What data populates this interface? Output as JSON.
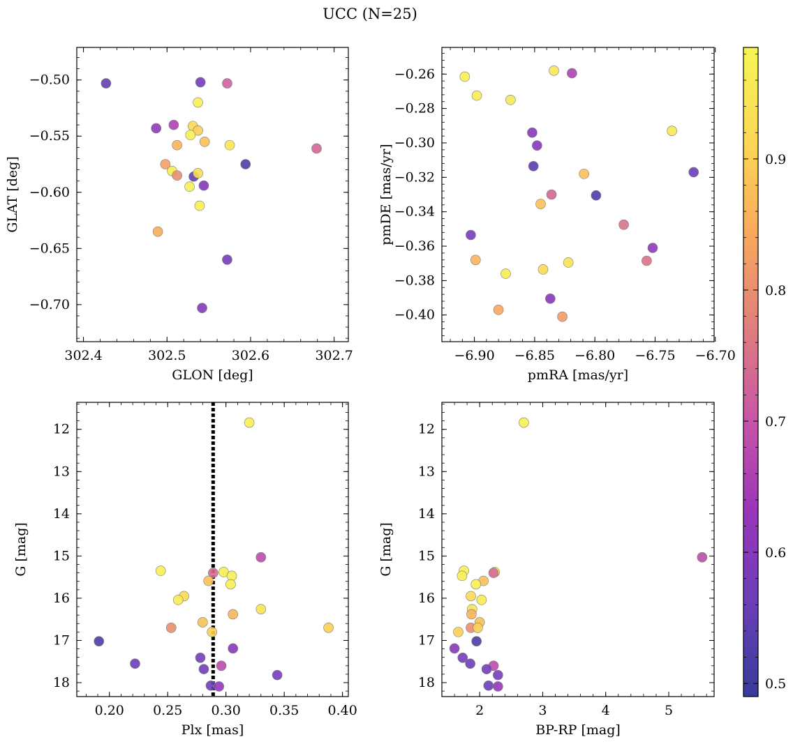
{
  "title": "UCC (N=25)",
  "colormap": {
    "name": "plasma",
    "stops": [
      "#363c9a",
      "#6a3fb8",
      "#9a35ba",
      "#c856a6",
      "#e07f7e",
      "#f8a95c",
      "#fcd855",
      "#f6f555"
    ],
    "min": 0.49,
    "max": 0.985,
    "ticks": [
      0.5,
      0.6,
      0.7,
      0.8,
      0.9
    ],
    "tick_labels": [
      "0.5",
      "0.6",
      "0.7",
      "0.8",
      "0.9"
    ]
  },
  "chart_data": [
    {
      "type": "scatter",
      "id": "pos",
      "xlabel": "GLON [deg]",
      "ylabel": "GLAT [deg]",
      "xlim": [
        302.392,
        302.717
      ],
      "ylim": [
        -0.733,
        -0.471
      ],
      "y_inverted": false,
      "xticks": [
        302.4,
        302.5,
        302.6,
        302.7
      ],
      "xtick_labels": [
        "302.4",
        "302.5",
        "302.6",
        "302.7"
      ],
      "yticks": [
        -0.5,
        -0.55,
        -0.6,
        -0.65,
        -0.7
      ],
      "ytick_labels": [
        "−0.50",
        "−0.55",
        "−0.60",
        "−0.65",
        "−0.70"
      ],
      "points": [
        {
          "x": 302.427,
          "y": -0.503,
          "c": 0.55
        },
        {
          "x": 302.54,
          "y": -0.502,
          "c": 0.57
        },
        {
          "x": 302.572,
          "y": -0.503,
          "c": 0.72
        },
        {
          "x": 302.537,
          "y": -0.52,
          "c": 0.97
        },
        {
          "x": 302.487,
          "y": -0.543,
          "c": 0.62
        },
        {
          "x": 302.508,
          "y": -0.54,
          "c": 0.66
        },
        {
          "x": 302.531,
          "y": -0.541,
          "c": 0.92
        },
        {
          "x": 302.537,
          "y": -0.545,
          "c": 0.9
        },
        {
          "x": 302.528,
          "y": -0.549,
          "c": 0.97
        },
        {
          "x": 302.545,
          "y": -0.555,
          "c": 0.88
        },
        {
          "x": 302.575,
          "y": -0.558,
          "c": 0.95
        },
        {
          "x": 302.512,
          "y": -0.558,
          "c": 0.86
        },
        {
          "x": 302.679,
          "y": -0.561,
          "c": 0.73
        },
        {
          "x": 302.594,
          "y": -0.575,
          "c": 0.52
        },
        {
          "x": 302.498,
          "y": -0.575,
          "c": 0.83
        },
        {
          "x": 302.506,
          "y": -0.581,
          "c": 0.96
        },
        {
          "x": 302.512,
          "y": -0.585,
          "c": 0.8
        },
        {
          "x": 302.532,
          "y": -0.586,
          "c": 0.55
        },
        {
          "x": 302.537,
          "y": -0.583,
          "c": 0.93
        },
        {
          "x": 302.527,
          "y": -0.595,
          "c": 0.97
        },
        {
          "x": 302.544,
          "y": -0.594,
          "c": 0.6
        },
        {
          "x": 302.539,
          "y": -0.612,
          "c": 0.97
        },
        {
          "x": 302.489,
          "y": -0.635,
          "c": 0.85
        },
        {
          "x": 302.572,
          "y": -0.66,
          "c": 0.58
        },
        {
          "x": 302.542,
          "y": -0.703,
          "c": 0.6
        }
      ]
    },
    {
      "type": "scatter",
      "id": "pm",
      "xlabel": "pmRA [mas/yr]",
      "ylabel": "pmDE [mas/yr]",
      "xlim": [
        -6.927,
        -6.701
      ],
      "ylim": [
        -0.4155,
        -0.2445
      ],
      "y_inverted": false,
      "xticks": [
        -6.9,
        -6.85,
        -6.8,
        -6.75,
        -6.7
      ],
      "xtick_labels": [
        "−6.90",
        "−6.85",
        "−6.80",
        "−6.75",
        "−6.70"
      ],
      "yticks": [
        -0.26,
        -0.28,
        -0.3,
        -0.32,
        -0.34,
        -0.36,
        -0.38,
        -0.4
      ],
      "ytick_labels": [
        "−0.26",
        "−0.28",
        "−0.30",
        "−0.32",
        "−0.34",
        "−0.36",
        "−0.38",
        "−0.40"
      ],
      "points": [
        {
          "x": -6.908,
          "y": -0.2615,
          "c": 0.97
        },
        {
          "x": -6.834,
          "y": -0.258,
          "c": 0.95
        },
        {
          "x": -6.819,
          "y": -0.2595,
          "c": 0.66
        },
        {
          "x": -6.898,
          "y": -0.2725,
          "c": 0.96
        },
        {
          "x": -6.87,
          "y": -0.275,
          "c": 0.95
        },
        {
          "x": -6.736,
          "y": -0.293,
          "c": 0.95
        },
        {
          "x": -6.852,
          "y": -0.294,
          "c": 0.6
        },
        {
          "x": -6.848,
          "y": -0.3015,
          "c": 0.6
        },
        {
          "x": -6.851,
          "y": -0.3135,
          "c": 0.54
        },
        {
          "x": -6.718,
          "y": -0.317,
          "c": 0.56
        },
        {
          "x": -6.809,
          "y": -0.318,
          "c": 0.88
        },
        {
          "x": -6.799,
          "y": -0.3305,
          "c": 0.52
        },
        {
          "x": -6.836,
          "y": -0.33,
          "c": 0.73
        },
        {
          "x": -6.845,
          "y": -0.3355,
          "c": 0.88
        },
        {
          "x": -6.776,
          "y": -0.3475,
          "c": 0.75
        },
        {
          "x": -6.903,
          "y": -0.3535,
          "c": 0.58
        },
        {
          "x": -6.752,
          "y": -0.361,
          "c": 0.62
        },
        {
          "x": -6.899,
          "y": -0.368,
          "c": 0.86
        },
        {
          "x": -6.757,
          "y": -0.3685,
          "c": 0.75
        },
        {
          "x": -6.822,
          "y": -0.3695,
          "c": 0.94
        },
        {
          "x": -6.843,
          "y": -0.3735,
          "c": 0.92
        },
        {
          "x": -6.874,
          "y": -0.376,
          "c": 0.96
        },
        {
          "x": -6.837,
          "y": -0.3905,
          "c": 0.6
        },
        {
          "x": -6.88,
          "y": -0.397,
          "c": 0.84
        },
        {
          "x": -6.827,
          "y": -0.401,
          "c": 0.82
        }
      ]
    },
    {
      "type": "scatter",
      "id": "plx",
      "xlabel": "Plx [mas]",
      "ylabel": "G [mag]",
      "xlim": [
        0.172,
        0.405
      ],
      "ylim": [
        18.33,
        11.36
      ],
      "y_inverted": true,
      "xticks": [
        0.2,
        0.25,
        0.3,
        0.35,
        0.4
      ],
      "xtick_labels": [
        "0.20",
        "0.25",
        "0.30",
        "0.35",
        "0.40"
      ],
      "yticks": [
        12,
        13,
        14,
        15,
        16,
        17,
        18
      ],
      "ytick_labels": [
        "12",
        "13",
        "14",
        "15",
        "16",
        "17",
        "18"
      ],
      "vline": {
        "x": 0.289,
        "style": "dotted"
      },
      "points": [
        {
          "x": 0.32,
          "y": 11.84,
          "c": 0.97
        },
        {
          "x": 0.33,
          "y": 15.03,
          "c": 0.68
        },
        {
          "x": 0.244,
          "y": 15.35,
          "c": 0.97
        },
        {
          "x": 0.298,
          "y": 15.38,
          "c": 0.97
        },
        {
          "x": 0.289,
          "y": 15.4,
          "c": 0.74
        },
        {
          "x": 0.305,
          "y": 15.47,
          "c": 0.97
        },
        {
          "x": 0.285,
          "y": 15.59,
          "c": 0.88
        },
        {
          "x": 0.304,
          "y": 15.67,
          "c": 0.97
        },
        {
          "x": 0.264,
          "y": 15.95,
          "c": 0.92
        },
        {
          "x": 0.259,
          "y": 16.04,
          "c": 0.96
        },
        {
          "x": 0.33,
          "y": 16.26,
          "c": 0.94
        },
        {
          "x": 0.306,
          "y": 16.38,
          "c": 0.86
        },
        {
          "x": 0.28,
          "y": 16.57,
          "c": 0.88
        },
        {
          "x": 0.253,
          "y": 16.7,
          "c": 0.8
        },
        {
          "x": 0.388,
          "y": 16.7,
          "c": 0.9
        },
        {
          "x": 0.288,
          "y": 16.8,
          "c": 0.9
        },
        {
          "x": 0.191,
          "y": 17.02,
          "c": 0.52
        },
        {
          "x": 0.306,
          "y": 17.19,
          "c": 0.6
        },
        {
          "x": 0.278,
          "y": 17.41,
          "c": 0.58
        },
        {
          "x": 0.222,
          "y": 17.55,
          "c": 0.56
        },
        {
          "x": 0.296,
          "y": 17.6,
          "c": 0.68
        },
        {
          "x": 0.281,
          "y": 17.68,
          "c": 0.57
        },
        {
          "x": 0.344,
          "y": 17.82,
          "c": 0.58
        },
        {
          "x": 0.287,
          "y": 18.07,
          "c": 0.56
        },
        {
          "x": 0.294,
          "y": 18.09,
          "c": 0.62
        }
      ]
    },
    {
      "type": "scatter",
      "id": "cmd",
      "xlabel": "BP-RP [mag]",
      "ylabel": "G [mag]",
      "xlim": [
        1.4,
        5.72
      ],
      "ylim": [
        18.33,
        11.36
      ],
      "y_inverted": true,
      "xticks": [
        2,
        3,
        4,
        5
      ],
      "xtick_labels": [
        "2",
        "3",
        "4",
        "5"
      ],
      "yticks": [
        12,
        13,
        14,
        15,
        16,
        17,
        18
      ],
      "ytick_labels": [
        "12",
        "13",
        "14",
        "15",
        "16",
        "17",
        "18"
      ],
      "points": [
        {
          "x": 2.7,
          "y": 11.84,
          "c": 0.97
        },
        {
          "x": 5.53,
          "y": 15.03,
          "c": 0.68
        },
        {
          "x": 1.75,
          "y": 15.35,
          "c": 0.97
        },
        {
          "x": 2.24,
          "y": 15.38,
          "c": 0.97
        },
        {
          "x": 2.22,
          "y": 15.4,
          "c": 0.74
        },
        {
          "x": 1.72,
          "y": 15.47,
          "c": 0.97
        },
        {
          "x": 2.06,
          "y": 15.59,
          "c": 0.88
        },
        {
          "x": 1.94,
          "y": 15.67,
          "c": 0.97
        },
        {
          "x": 1.86,
          "y": 15.95,
          "c": 0.92
        },
        {
          "x": 2.03,
          "y": 16.04,
          "c": 0.96
        },
        {
          "x": 1.88,
          "y": 16.26,
          "c": 0.94
        },
        {
          "x": 1.87,
          "y": 16.38,
          "c": 0.86
        },
        {
          "x": 2.0,
          "y": 16.57,
          "c": 0.88
        },
        {
          "x": 1.86,
          "y": 16.7,
          "c": 0.8
        },
        {
          "x": 1.97,
          "y": 16.7,
          "c": 0.9
        },
        {
          "x": 1.66,
          "y": 16.8,
          "c": 0.9
        },
        {
          "x": 1.95,
          "y": 17.02,
          "c": 0.52
        },
        {
          "x": 1.6,
          "y": 17.19,
          "c": 0.6
        },
        {
          "x": 1.73,
          "y": 17.41,
          "c": 0.58
        },
        {
          "x": 1.85,
          "y": 17.55,
          "c": 0.56
        },
        {
          "x": 2.22,
          "y": 17.6,
          "c": 0.68
        },
        {
          "x": 2.11,
          "y": 17.68,
          "c": 0.57
        },
        {
          "x": 2.29,
          "y": 17.82,
          "c": 0.58
        },
        {
          "x": 2.14,
          "y": 18.07,
          "c": 0.56
        },
        {
          "x": 2.29,
          "y": 18.09,
          "c": 0.62
        }
      ]
    }
  ]
}
